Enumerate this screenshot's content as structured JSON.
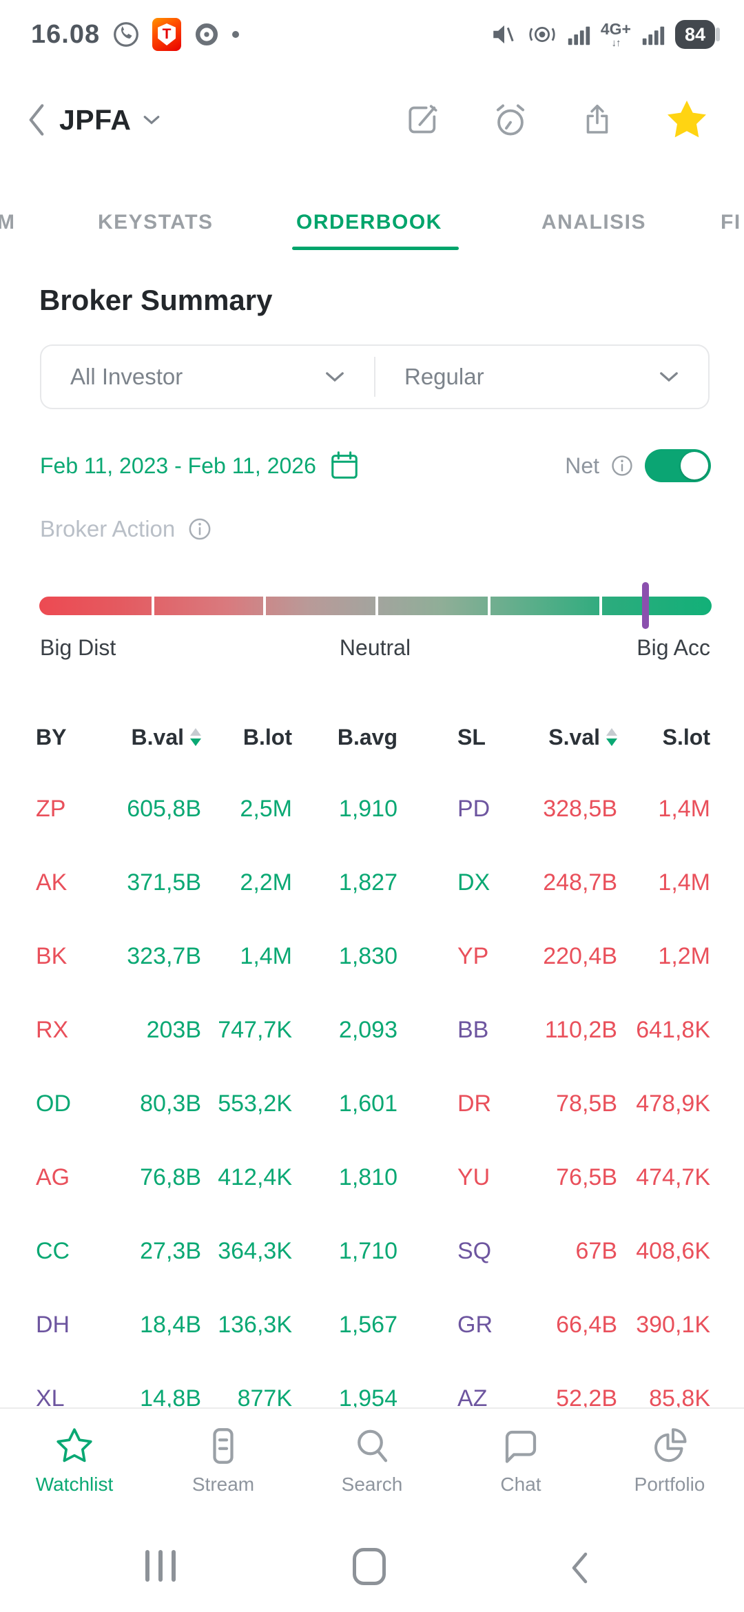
{
  "colors": {
    "green": "#0aa873",
    "red": "#e9505b",
    "purple": "#6d559f",
    "marker_purple": "#8b50ae",
    "star_yellow": "#ffd412",
    "tab_active_green": "#00a46b"
  },
  "status_bar": {
    "time": "16.08",
    "battery_pct": "84",
    "network_badge": "4G+",
    "network_arrows": "↓↑"
  },
  "header": {
    "title": "JPFA"
  },
  "tabs": {
    "items": [
      {
        "label": "M"
      },
      {
        "label": "KEYSTATS"
      },
      {
        "label": "ORDERBOOK",
        "active": true
      },
      {
        "label": "ANALISIS"
      },
      {
        "label": "FI"
      }
    ]
  },
  "broker_summary": {
    "title": "Broker Summary",
    "investor_filter": "All Investor",
    "market_filter": "Regular",
    "date_range": "Feb 11, 2023 - Feb 11, 2026",
    "net_toggle": {
      "label": "Net",
      "state": "on"
    },
    "broker_action": {
      "label": "Broker Action",
      "left_label": "Big Dist",
      "center_label": "Neutral",
      "right_label": "Big Acc",
      "marker_position_pct": 90.2
    }
  },
  "table": {
    "headers": [
      {
        "label": "BY"
      },
      {
        "label": "B.val",
        "sortable": true
      },
      {
        "label": "B.lot"
      },
      {
        "label": "B.avg"
      },
      {
        "label": "SL"
      },
      {
        "label": "S.val",
        "sortable": true
      },
      {
        "label": "S.lot"
      }
    ],
    "rows": [
      {
        "by": "ZP",
        "by_color": "red",
        "bval": "605,8B",
        "blot": "2,5M",
        "bavg": "1,910",
        "sl": "PD",
        "sl_color": "purple",
        "sval": "328,5B",
        "slot": "1,4M"
      },
      {
        "by": "AK",
        "by_color": "red",
        "bval": "371,5B",
        "blot": "2,2M",
        "bavg": "1,827",
        "sl": "DX",
        "sl_color": "green",
        "sval": "248,7B",
        "slot": "1,4M"
      },
      {
        "by": "BK",
        "by_color": "red",
        "bval": "323,7B",
        "blot": "1,4M",
        "bavg": "1,830",
        "sl": "YP",
        "sl_color": "red",
        "sval": "220,4B",
        "slot": "1,2M"
      },
      {
        "by": "RX",
        "by_color": "red",
        "bval": "203B",
        "blot": "747,7K",
        "bavg": "2,093",
        "sl": "BB",
        "sl_color": "purple",
        "sval": "110,2B",
        "slot": "641,8K"
      },
      {
        "by": "OD",
        "by_color": "green",
        "bval": "80,3B",
        "blot": "553,2K",
        "bavg": "1,601",
        "sl": "DR",
        "sl_color": "red",
        "sval": "78,5B",
        "slot": "478,9K"
      },
      {
        "by": "AG",
        "by_color": "red",
        "bval": "76,8B",
        "blot": "412,4K",
        "bavg": "1,810",
        "sl": "YU",
        "sl_color": "red",
        "sval": "76,5B",
        "slot": "474,7K"
      },
      {
        "by": "CC",
        "by_color": "green",
        "bval": "27,3B",
        "blot": "364,3K",
        "bavg": "1,710",
        "sl": "SQ",
        "sl_color": "purple",
        "sval": "67B",
        "slot": "408,6K"
      },
      {
        "by": "DH",
        "by_color": "purple",
        "bval": "18,4B",
        "blot": "136,3K",
        "bavg": "1,567",
        "sl": "GR",
        "sl_color": "purple",
        "sval": "66,4B",
        "slot": "390,1K"
      },
      {
        "by": "XL",
        "by_color": "purple",
        "bval": "14,8B",
        "blot": "877K",
        "bavg": "1,954",
        "sl": "AZ",
        "sl_color": "purple",
        "sval": "52,2B",
        "slot": "85,8K"
      }
    ]
  },
  "bottom_nav": {
    "items": [
      {
        "label": "Watchlist",
        "icon": "star-outline-icon",
        "active": true
      },
      {
        "label": "Stream",
        "icon": "stream-icon"
      },
      {
        "label": "Search",
        "icon": "search-icon"
      },
      {
        "label": "Chat",
        "icon": "chat-icon"
      },
      {
        "label": "Portfolio",
        "icon": "pie-chart-icon"
      }
    ]
  }
}
